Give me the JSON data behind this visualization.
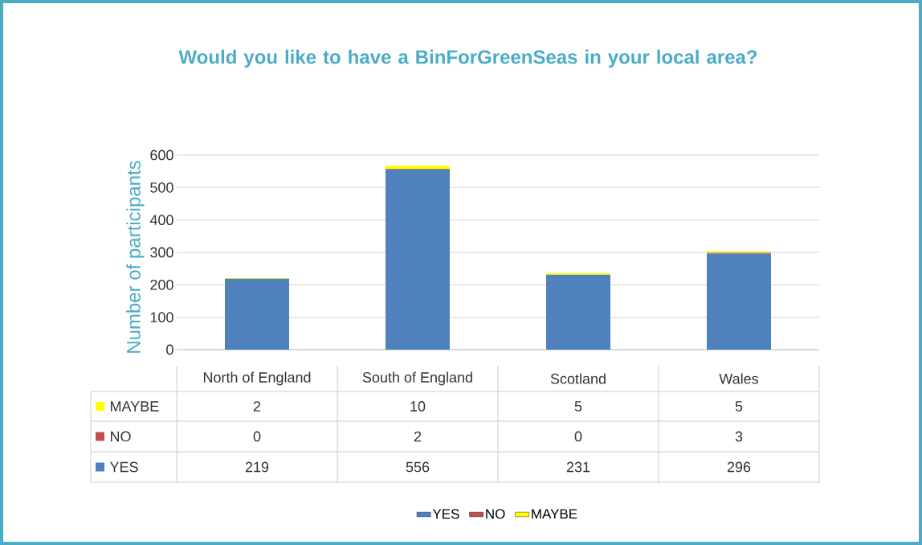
{
  "chart_data": {
    "type": "bar",
    "stacked": true,
    "title": "Would you like to have a BinForGreenSeas in your local area?",
    "ylabel": "Number of participants",
    "categories": [
      "North of England",
      "South of England",
      "Scotland",
      "Wales"
    ],
    "series": [
      {
        "name": "YES",
        "color": "#4f81bd",
        "values": [
          219,
          556,
          231,
          296
        ]
      },
      {
        "name": "NO",
        "color": "#c0504d",
        "values": [
          0,
          2,
          0,
          3
        ]
      },
      {
        "name": "MAYBE",
        "color": "#ffff00",
        "values": [
          2,
          10,
          5,
          5
        ]
      }
    ],
    "ylim": [
      0,
      600
    ],
    "yticks": [
      0,
      100,
      200,
      300,
      400,
      500,
      600
    ],
    "grid": "y",
    "legend": "bottom",
    "data_labels": true
  }
}
